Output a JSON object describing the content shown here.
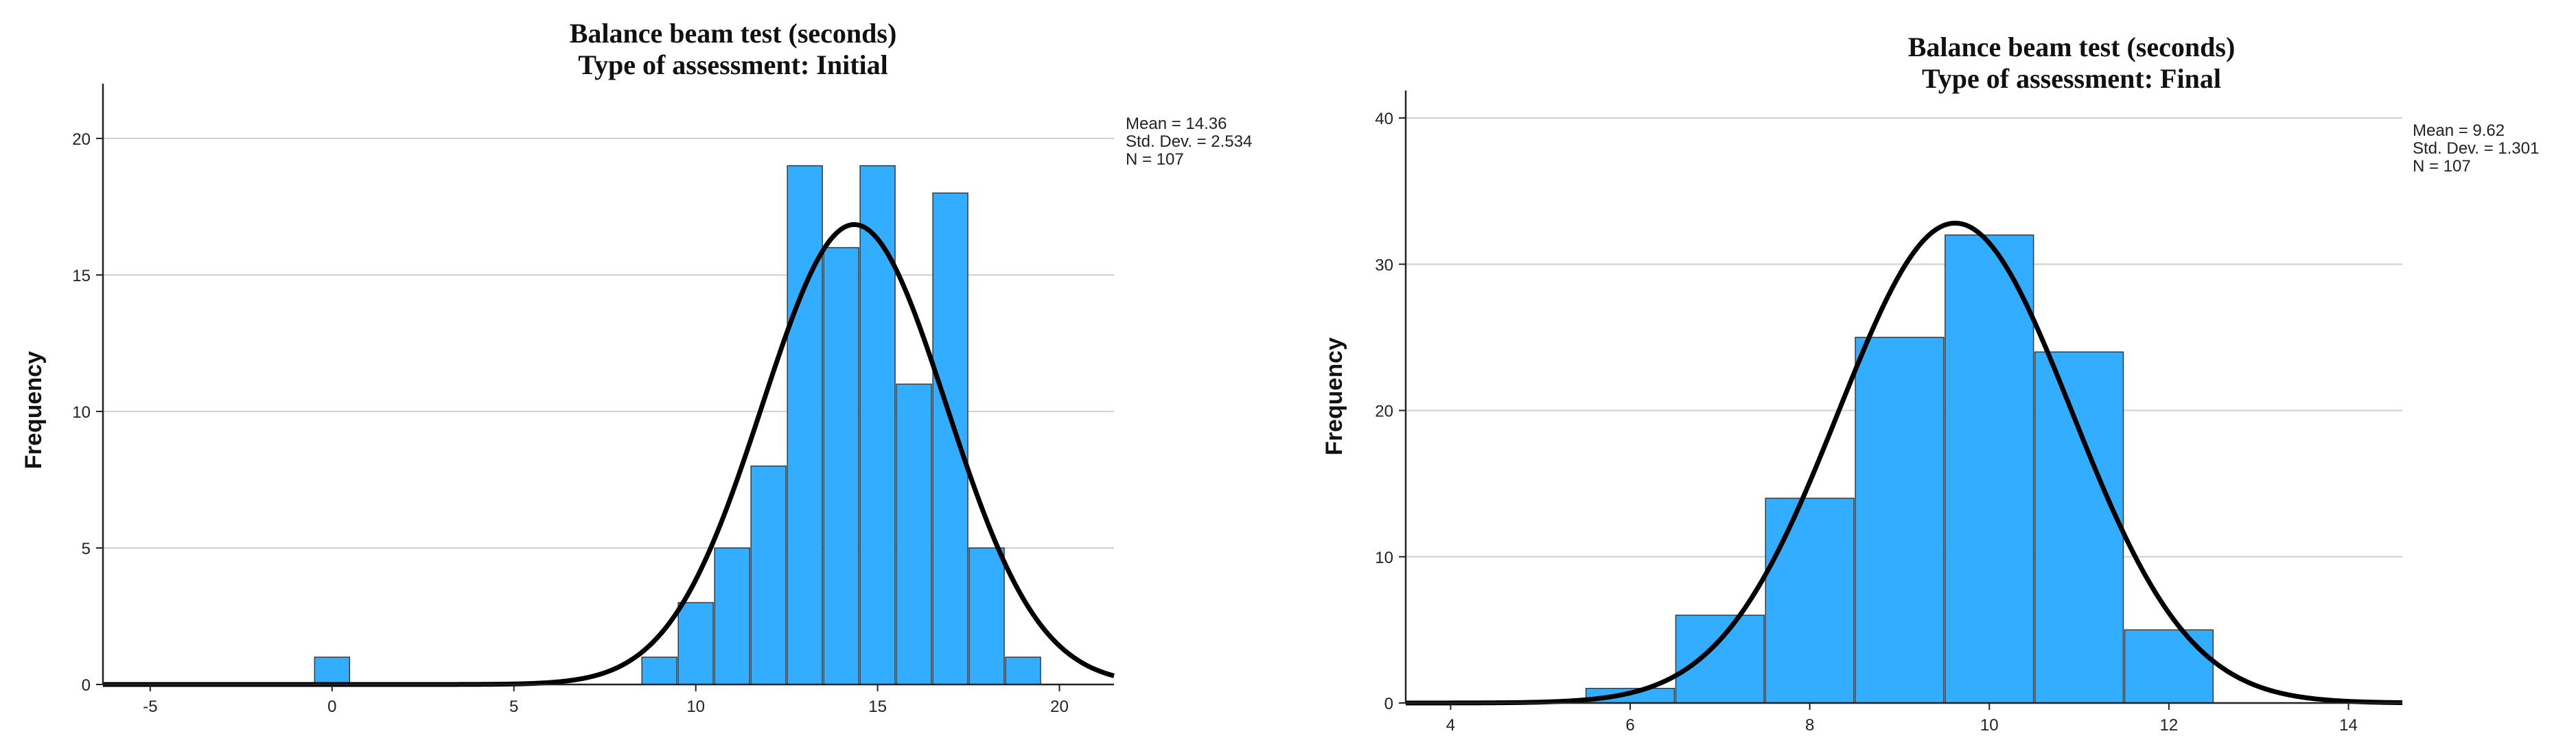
{
  "chart_data": [
    {
      "type": "bar",
      "title": "Balance beam test (seconds)",
      "subtitle": "Type of assessment: Initial",
      "ylabel": "Frequency",
      "xlim": [
        -6.3,
        21.5
      ],
      "ylim": [
        0,
        21
      ],
      "xticks": [
        -5,
        0,
        5,
        10,
        15,
        20
      ],
      "yticks": [
        0,
        5,
        10,
        15,
        20
      ],
      "bin_width": 1,
      "bins": [
        {
          "center": 0,
          "count": 1
        },
        {
          "center": 9,
          "count": 1
        },
        {
          "center": 10,
          "count": 3
        },
        {
          "center": 11,
          "count": 5
        },
        {
          "center": 12,
          "count": 8
        },
        {
          "center": 13,
          "count": 19
        },
        {
          "center": 14,
          "count": 16
        },
        {
          "center": 15,
          "count": 19
        },
        {
          "center": 16,
          "count": 11
        },
        {
          "center": 17,
          "count": 18
        },
        {
          "center": 18,
          "count": 5
        },
        {
          "center": 19,
          "count": 1
        }
      ],
      "normal_curve": {
        "mean": 14.36,
        "sd": 2.534,
        "n": 107
      },
      "stats_lines": [
        "Mean = 14.36",
        "Std. Dev. = 2.534",
        "N = 107"
      ],
      "grid": true,
      "bar_color": "#33adff",
      "curve_color": "#000000"
    },
    {
      "type": "bar",
      "title": "Balance beam test (seconds)",
      "subtitle": "Type of assessment: Final",
      "ylabel": "Frequency",
      "xlim": [
        3.5,
        14.6
      ],
      "ylim": [
        0,
        40
      ],
      "xticks": [
        4,
        6,
        8,
        10,
        12,
        14
      ],
      "yticks": [
        0,
        10,
        20,
        30,
        40
      ],
      "bin_width": 1,
      "bins": [
        {
          "center": 6,
          "count": 1
        },
        {
          "center": 7,
          "count": 6
        },
        {
          "center": 8,
          "count": 14
        },
        {
          "center": 9,
          "count": 25
        },
        {
          "center": 10,
          "count": 32
        },
        {
          "center": 11,
          "count": 24
        },
        {
          "center": 12,
          "count": 5
        }
      ],
      "normal_curve": {
        "mean": 9.62,
        "sd": 1.301,
        "n": 107
      },
      "stats_lines": [
        "Mean = 9.62",
        "Std. Dev. = 1.301",
        "N = 107"
      ],
      "grid": true,
      "bar_color": "#33adff",
      "curve_color": "#000000"
    }
  ]
}
